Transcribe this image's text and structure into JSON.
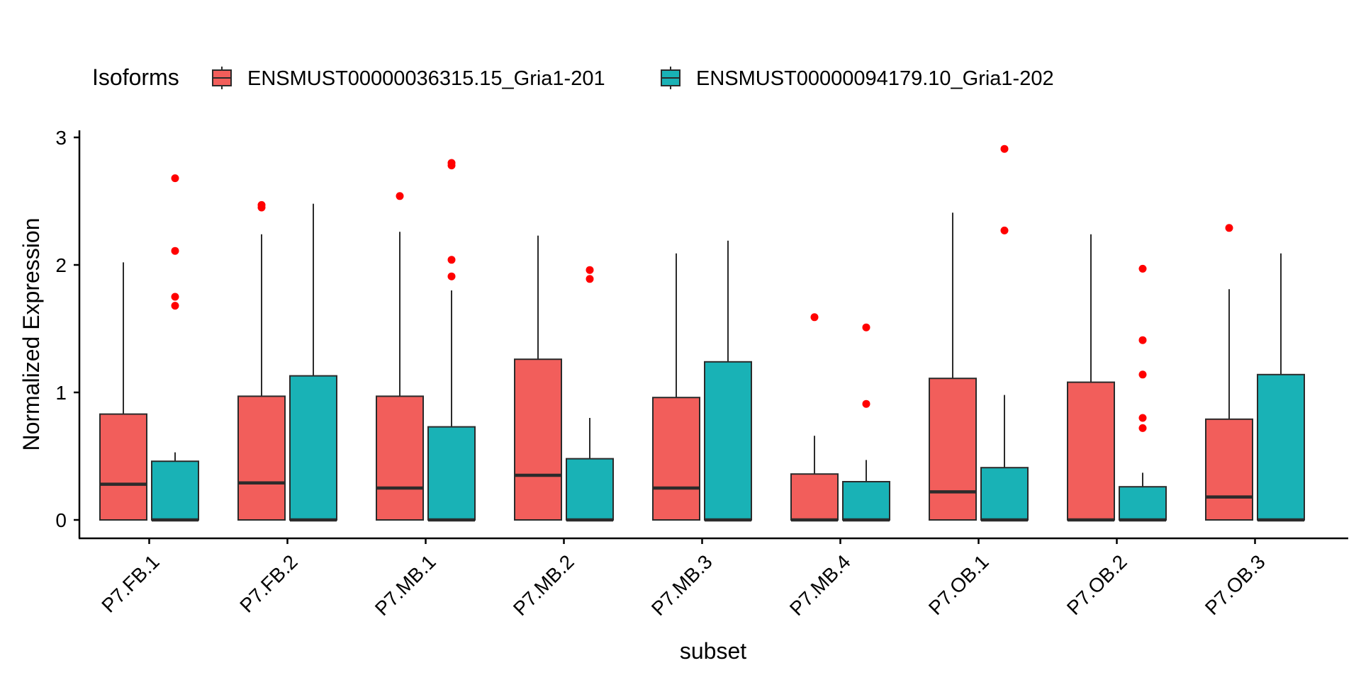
{
  "chart_data": {
    "type": "boxplot",
    "title": "",
    "xlabel": "subset",
    "ylabel": "Normalized Expression",
    "ylim": [
      -0.15,
      3.05
    ],
    "yticks": [
      0,
      1,
      2,
      3
    ],
    "categories": [
      "P7.FB.1",
      "P7.FB.2",
      "P7.MB.1",
      "P7.MB.2",
      "P7.MB.3",
      "P7.MB.4",
      "P7.OB.1",
      "P7.OB.2",
      "P7.OB.3"
    ],
    "legend": {
      "title": "Isoforms",
      "position": "top",
      "entries": [
        "ENSMUST00000036315.15_Gria1-201",
        "ENSMUST00000094179.10_Gria1-202"
      ]
    },
    "outlier_color": "#FF0000",
    "series": [
      {
        "name": "ENSMUST00000036315.15_Gria1-201",
        "color": "#F25E5B",
        "boxes": [
          {
            "min": 0,
            "q1": 0,
            "median": 0.28,
            "q3": 0.83,
            "max": 2.02,
            "outliers": []
          },
          {
            "min": 0,
            "q1": 0,
            "median": 0.29,
            "q3": 0.97,
            "max": 2.24,
            "outliers": [
              2.45,
              2.47
            ]
          },
          {
            "min": 0,
            "q1": 0,
            "median": 0.25,
            "q3": 0.97,
            "max": 2.26,
            "outliers": [
              2.54
            ]
          },
          {
            "min": 0,
            "q1": 0,
            "median": 0.35,
            "q3": 1.26,
            "max": 2.23,
            "outliers": []
          },
          {
            "min": 0,
            "q1": 0,
            "median": 0.25,
            "q3": 0.96,
            "max": 2.09,
            "outliers": []
          },
          {
            "min": 0,
            "q1": 0,
            "median": 0,
            "q3": 0.36,
            "max": 0.66,
            "outliers": [
              1.59
            ]
          },
          {
            "min": 0,
            "q1": 0,
            "median": 0.22,
            "q3": 1.11,
            "max": 2.41,
            "outliers": []
          },
          {
            "min": 0,
            "q1": 0,
            "median": 0,
            "q3": 1.08,
            "max": 2.24,
            "outliers": []
          },
          {
            "min": 0,
            "q1": 0,
            "median": 0.18,
            "q3": 0.79,
            "max": 1.81,
            "outliers": [
              2.29
            ]
          }
        ]
      },
      {
        "name": "ENSMUST00000094179.10_Gria1-202",
        "color": "#19B2B6",
        "boxes": [
          {
            "min": 0,
            "q1": 0,
            "median": 0,
            "q3": 0.46,
            "max": 0.53,
            "outliers": [
              1.68,
              1.75,
              2.11,
              2.68
            ]
          },
          {
            "min": 0,
            "q1": 0,
            "median": 0,
            "q3": 1.13,
            "max": 2.48,
            "outliers": []
          },
          {
            "min": 0,
            "q1": 0,
            "median": 0,
            "q3": 0.73,
            "max": 1.8,
            "outliers": [
              1.91,
              2.04,
              2.78,
              2.8
            ]
          },
          {
            "min": 0,
            "q1": 0,
            "median": 0,
            "q3": 0.48,
            "max": 0.8,
            "outliers": [
              1.89,
              1.96
            ]
          },
          {
            "min": 0,
            "q1": 0,
            "median": 0,
            "q3": 1.24,
            "max": 2.19,
            "outliers": []
          },
          {
            "min": 0,
            "q1": 0,
            "median": 0,
            "q3": 0.3,
            "max": 0.47,
            "outliers": [
              0.91,
              1.51
            ]
          },
          {
            "min": 0,
            "q1": 0,
            "median": 0,
            "q3": 0.41,
            "max": 0.98,
            "outliers": [
              2.27,
              2.91
            ]
          },
          {
            "min": 0,
            "q1": 0,
            "median": 0,
            "q3": 0.26,
            "max": 0.37,
            "outliers": [
              0.72,
              0.8,
              1.14,
              1.41,
              1.97
            ]
          },
          {
            "min": 0,
            "q1": 0,
            "median": 0,
            "q3": 1.14,
            "max": 2.09,
            "outliers": []
          }
        ]
      }
    ]
  }
}
